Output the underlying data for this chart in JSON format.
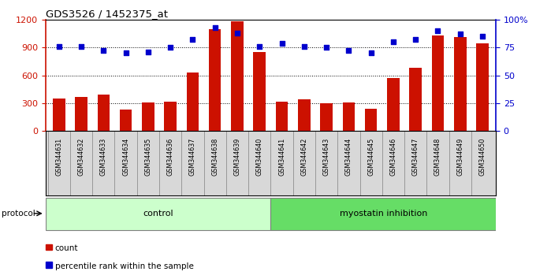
{
  "title": "GDS3526 / 1452375_at",
  "samples": [
    "GSM344631",
    "GSM344632",
    "GSM344633",
    "GSM344634",
    "GSM344635",
    "GSM344636",
    "GSM344637",
    "GSM344638",
    "GSM344639",
    "GSM344640",
    "GSM344641",
    "GSM344642",
    "GSM344643",
    "GSM344644",
    "GSM344645",
    "GSM344646",
    "GSM344647",
    "GSM344648",
    "GSM344649",
    "GSM344650"
  ],
  "counts": [
    350,
    370,
    390,
    230,
    310,
    320,
    630,
    1100,
    1180,
    850,
    320,
    340,
    300,
    310,
    240,
    570,
    680,
    1030,
    1010,
    940
  ],
  "percentile_ranks": [
    76,
    76,
    72,
    70,
    71,
    75,
    82,
    93,
    88,
    76,
    79,
    76,
    75,
    72,
    70,
    80,
    82,
    90,
    87,
    85
  ],
  "control_count": 10,
  "bar_color": "#cc1100",
  "dot_color": "#0000cc",
  "bg_color": "#ffffff",
  "plot_bg": "#ffffff",
  "ylabel_left_color": "#cc1100",
  "ylabel_right_color": "#0000cc",
  "left_ylim": [
    0,
    1200
  ],
  "right_ylim": [
    0,
    100
  ],
  "left_yticks": [
    0,
    300,
    600,
    900,
    1200
  ],
  "right_yticks": [
    0,
    25,
    50,
    75,
    100
  ],
  "right_yticklabels": [
    "0",
    "25",
    "50",
    "75",
    "100%"
  ],
  "control_label": "control",
  "treatment_label": "myostatin inhibition",
  "protocol_label": "protocol",
  "legend_count": "count",
  "legend_pct": "percentile rank within the sample",
  "control_color": "#ccffcc",
  "treatment_color": "#66dd66",
  "label_bg_color": "#d8d8d8",
  "bar_width": 0.55
}
